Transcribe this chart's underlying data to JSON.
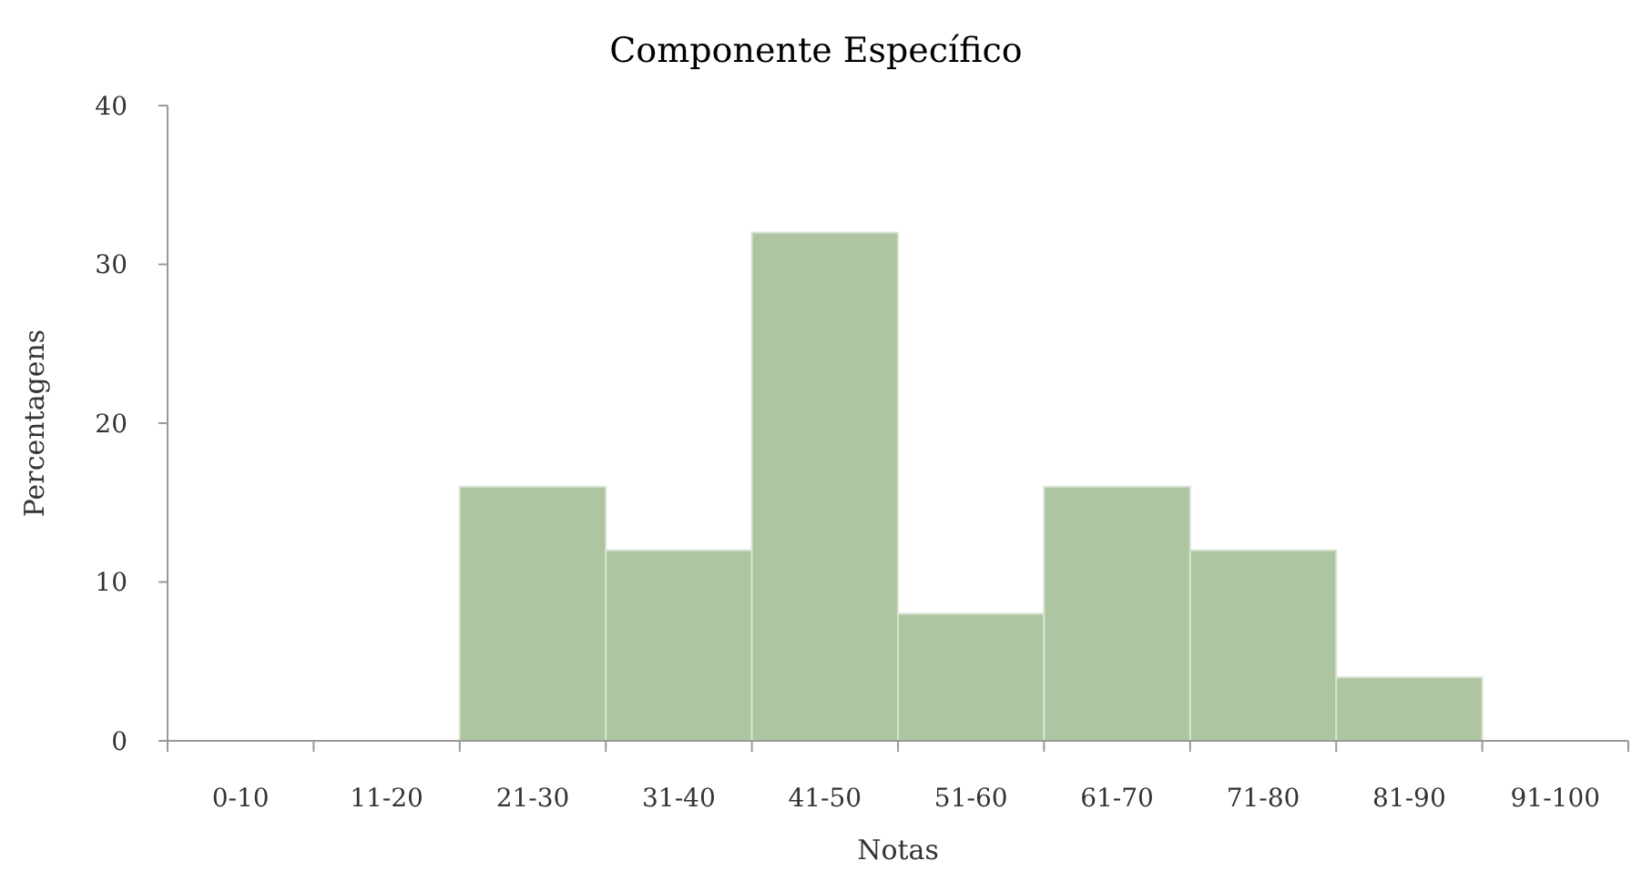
{
  "chart_data": {
    "type": "bar",
    "title": "Componente Específico",
    "xlabel": "Notas",
    "ylabel": "Percentagens",
    "categories": [
      "0-10",
      "11-20",
      "21-30",
      "31-40",
      "41-50",
      "51-60",
      "61-70",
      "71-80",
      "81-90",
      "91-100"
    ],
    "values": [
      0,
      0,
      16,
      12,
      32,
      8,
      16,
      12,
      4,
      0
    ],
    "color": "#adc5a0",
    "ylim": [
      0,
      40
    ],
    "yticks": [
      0,
      10,
      20,
      30,
      40
    ],
    "grid": false
  }
}
